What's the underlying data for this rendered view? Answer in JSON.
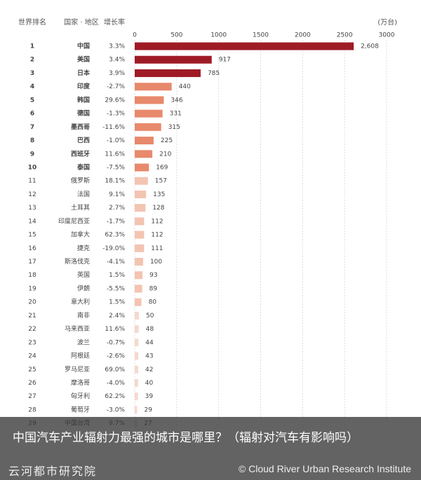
{
  "chart_data": {
    "type": "bar",
    "orientation": "horizontal",
    "headers": [
      "世界排名",
      "国家 · 地区",
      "增长率"
    ],
    "unit": "(万台)",
    "ranks": [
      1,
      2,
      3,
      4,
      5,
      6,
      7,
      8,
      9,
      10,
      11,
      12,
      13,
      14,
      15,
      16,
      17,
      18,
      19,
      20,
      21,
      22,
      23,
      24,
      25,
      26,
      27,
      28,
      29
    ],
    "categories": [
      "中国",
      "美国",
      "日本",
      "印度",
      "韩国",
      "德国",
      "墨西哥",
      "巴西",
      "西班牙",
      "泰国",
      "俄罗斯",
      "法国",
      "土耳其",
      "印度尼西亚",
      "加拿大",
      "捷克",
      "斯洛伐克",
      "英国",
      "伊朗",
      "意大利",
      "南非",
      "马来西亚",
      "波兰",
      "阿根廷",
      "罗马尼亚",
      "摩洛哥",
      "匈牙利",
      "葡萄牙",
      "中国台湾"
    ],
    "growth_rates": [
      "3.3%",
      "3.4%",
      "3.9%",
      "-2.7%",
      "29.6%",
      "-1.3%",
      "-11.6%",
      "-1.0%",
      "11.6%",
      "-7.5%",
      "18.1%",
      "9.1%",
      "2.7%",
      "-1.7%",
      "62.3%",
      "-19.0%",
      "-4.1%",
      "1.5%",
      "-5.5%",
      "1.5%",
      "2.4%",
      "11.6%",
      "-0.7%",
      "-2.6%",
      "69.0%",
      "-4.0%",
      "62.2%",
      "-3.0%",
      "9.7%"
    ],
    "values": [
      2608,
      917,
      785,
      440,
      346,
      331,
      315,
      225,
      210,
      169,
      157,
      135,
      128,
      112,
      112,
      111,
      100,
      93,
      89,
      80,
      50,
      48,
      44,
      43,
      42,
      40,
      39,
      29,
      27
    ],
    "value_labels": [
      "2,608",
      "917",
      "785",
      "440",
      "346",
      "331",
      "315",
      "225",
      "210",
      "169",
      "157",
      "135",
      "128",
      "112",
      "112",
      "111",
      "100",
      "93",
      "89",
      "80",
      "50",
      "48",
      "44",
      "43",
      "42",
      "40",
      "39",
      "29",
      "27"
    ],
    "colors": [
      "#9e1b26",
      "#9e1b26",
      "#9e1b26",
      "#e8896c",
      "#e8896c",
      "#e8896c",
      "#e8896c",
      "#e8896c",
      "#e8896c",
      "#e8896c",
      "#f3c4b1",
      "#f3c4b1",
      "#f3c4b1",
      "#f3c4b1",
      "#f3c4b1",
      "#f3c4b1",
      "#f3c4b1",
      "#f3c4b1",
      "#f3c4b1",
      "#f3c4b1",
      "#f6d9ce",
      "#f6d9ce",
      "#f6d9ce",
      "#f6d9ce",
      "#f6d9ce",
      "#f6d9ce",
      "#f6d9ce",
      "#f6d9ce",
      "#f6d9ce"
    ],
    "xlim": [
      0,
      3000
    ],
    "xticks": [
      0,
      500,
      1000,
      1500,
      2000,
      2500,
      3000
    ],
    "grid": true
  },
  "caption": "中国汽车产业辐射力最强的城市是哪里？（辐射对汽车有影响吗）",
  "footer": {
    "left": "云河都市研究院",
    "right": "© Cloud River Urban Research Institute"
  }
}
